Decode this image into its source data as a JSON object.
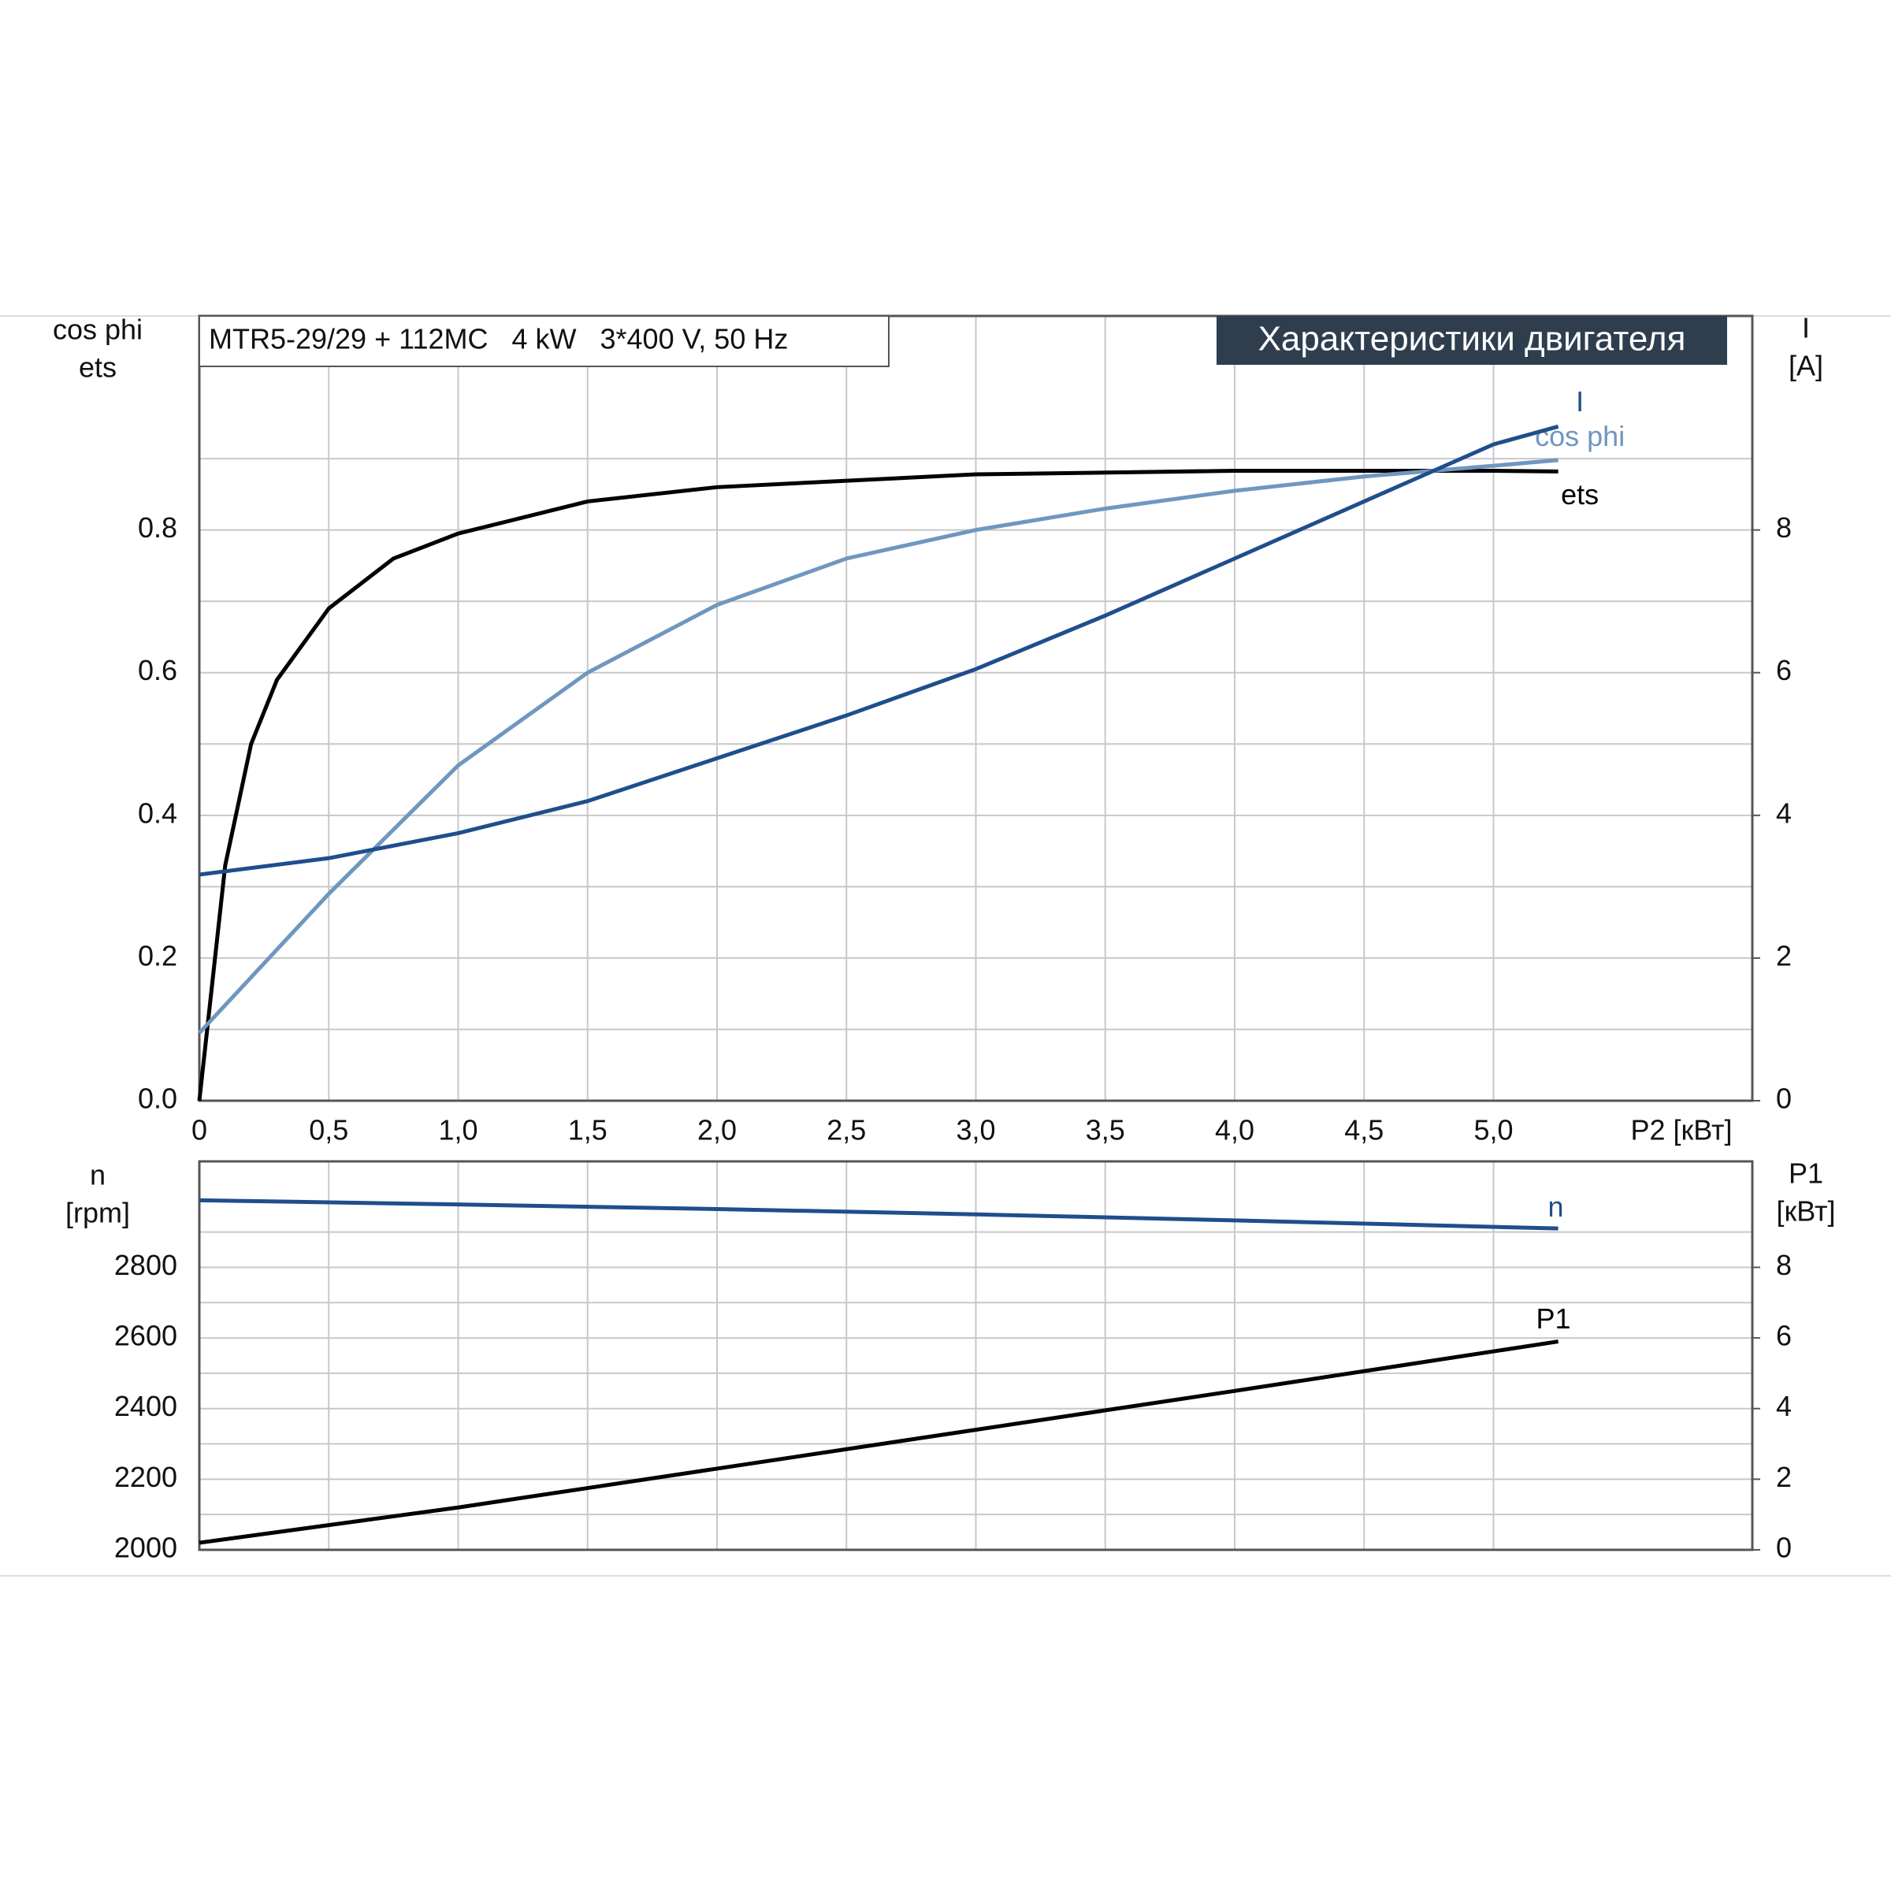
{
  "chart_data": [
    {
      "type": "line",
      "header": "Характеристики двигателя",
      "title": "MTR5-29/29 + 112MC   4 kW   3*400 V, 50 Hz",
      "y_label": [
        "cos phi",
        "ets"
      ],
      "y2_label": [
        "I",
        "[A]"
      ],
      "x_label": "P2 [кВт]",
      "xlim": [
        0,
        6
      ],
      "xticks": [
        0,
        {
          "value": 0.5,
          "label": "0,5"
        },
        {
          "value": 1,
          "label": "1,0"
        },
        {
          "value": 1.5,
          "label": "1,5"
        },
        {
          "value": 2,
          "label": "2,0"
        },
        {
          "value": 2.5,
          "label": "2,5"
        },
        {
          "value": 3,
          "label": "3,0"
        },
        {
          "value": 3.5,
          "label": "3,5"
        },
        {
          "value": 4,
          "label": "4,0"
        },
        {
          "value": 4.5,
          "label": "4,5"
        },
        {
          "value": 5,
          "label": "5,0"
        }
      ],
      "ylim": [
        0,
        1.1
      ],
      "yticks": [
        {
          "value": 0,
          "label": "0.0"
        },
        0.2,
        0.4,
        0.6,
        0.8
      ],
      "y2lim": [
        0,
        11
      ],
      "y2ticks": [
        0,
        2,
        4,
        6,
        8
      ],
      "grid": true,
      "series": [
        {
          "name": "ets",
          "color": "#000000",
          "x": [
            0,
            0.1,
            0.2,
            0.3,
            0.5,
            0.75,
            1.0,
            1.5,
            2.0,
            3.0,
            4.0,
            5.0,
            5.25
          ],
          "values": [
            0,
            0.33,
            0.5,
            0.59,
            0.69,
            0.76,
            0.795,
            0.84,
            0.86,
            0.878,
            0.883,
            0.883,
            0.882
          ]
        },
        {
          "name": "cos phi",
          "color": "#6f97bf",
          "x": [
            0,
            0.5,
            1.0,
            1.5,
            2.0,
            2.5,
            3.0,
            3.5,
            4.0,
            4.5,
            5.0,
            5.25
          ],
          "values": [
            0.095,
            0.29,
            0.47,
            0.6,
            0.695,
            0.76,
            0.8,
            0.83,
            0.855,
            0.875,
            0.89,
            0.898
          ]
        },
        {
          "name": "I",
          "color": "#1f4e8c",
          "axis": "y2",
          "x": [
            0,
            0.5,
            1.0,
            1.5,
            2.0,
            2.5,
            3.0,
            3.5,
            4.0,
            4.5,
            5.0,
            5.25
          ],
          "values": [
            3.17,
            3.4,
            3.75,
            4.2,
            4.8,
            5.4,
            6.05,
            6.8,
            7.6,
            8.4,
            9.2,
            9.45
          ]
        }
      ]
    },
    {
      "type": "line",
      "y_label": [
        "n",
        "[rpm]"
      ],
      "y2_label": [
        "P1",
        "[кВт]"
      ],
      "xlim": [
        0,
        6
      ],
      "ylim": [
        2000,
        3100
      ],
      "yticks": [
        2000,
        2200,
        2400,
        2600,
        2800
      ],
      "y2lim": [
        0,
        11
      ],
      "y2ticks": [
        0,
        2,
        4,
        6,
        8
      ],
      "grid": true,
      "series": [
        {
          "name": "n",
          "color": "#1f4e8c",
          "x": [
            0,
            1,
            2,
            3,
            4,
            5.25
          ],
          "values": [
            2990,
            2978,
            2965,
            2950,
            2933,
            2910
          ]
        },
        {
          "name": "P1",
          "color": "#000000",
          "axis": "y2",
          "x": [
            0,
            1,
            2,
            3,
            4,
            5.25
          ],
          "values": [
            0.2,
            1.2,
            2.3,
            3.4,
            4.5,
            5.9
          ]
        }
      ]
    }
  ]
}
